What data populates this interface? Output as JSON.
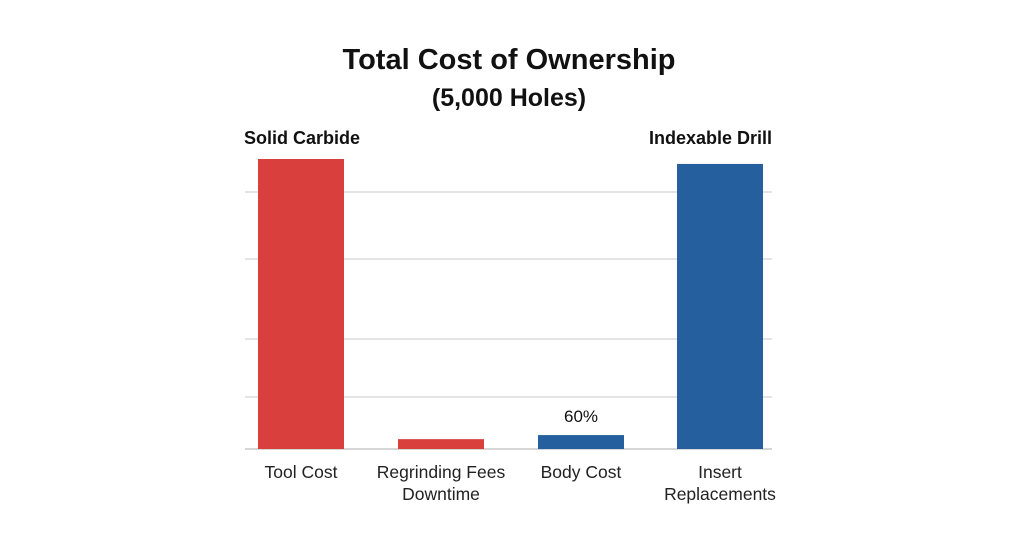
{
  "chart_data": {
    "type": "bar",
    "title": "Total Cost of Ownership",
    "subtitle": "(5,000 Holes)",
    "xlabel": "",
    "ylabel": "",
    "ylim": [
      0,
      100
    ],
    "grid": true,
    "categories": [
      "Tool Cost",
      "Regrinding Fees\nDowntime",
      "Body Cost",
      "Insert\nReplacements"
    ],
    "category_lines": [
      [
        "Tool Cost"
      ],
      [
        "Regrinding Fees",
        "Downtime"
      ],
      [
        "Body Cost"
      ],
      [
        "Insert",
        "Replacements"
      ]
    ],
    "values": [
      100,
      3.4,
      4.8,
      98.3
    ],
    "bar_series": [
      0,
      0,
      1,
      1
    ],
    "series": [
      {
        "name": "Solid Carbide",
        "color": "#d9403d",
        "legend_position": "top-left"
      },
      {
        "name": "Indexable Drill",
        "color": "#255f9e",
        "legend_position": "top-right"
      }
    ],
    "annotations": [
      {
        "category": "Body Cost",
        "text": "60%"
      }
    ]
  }
}
